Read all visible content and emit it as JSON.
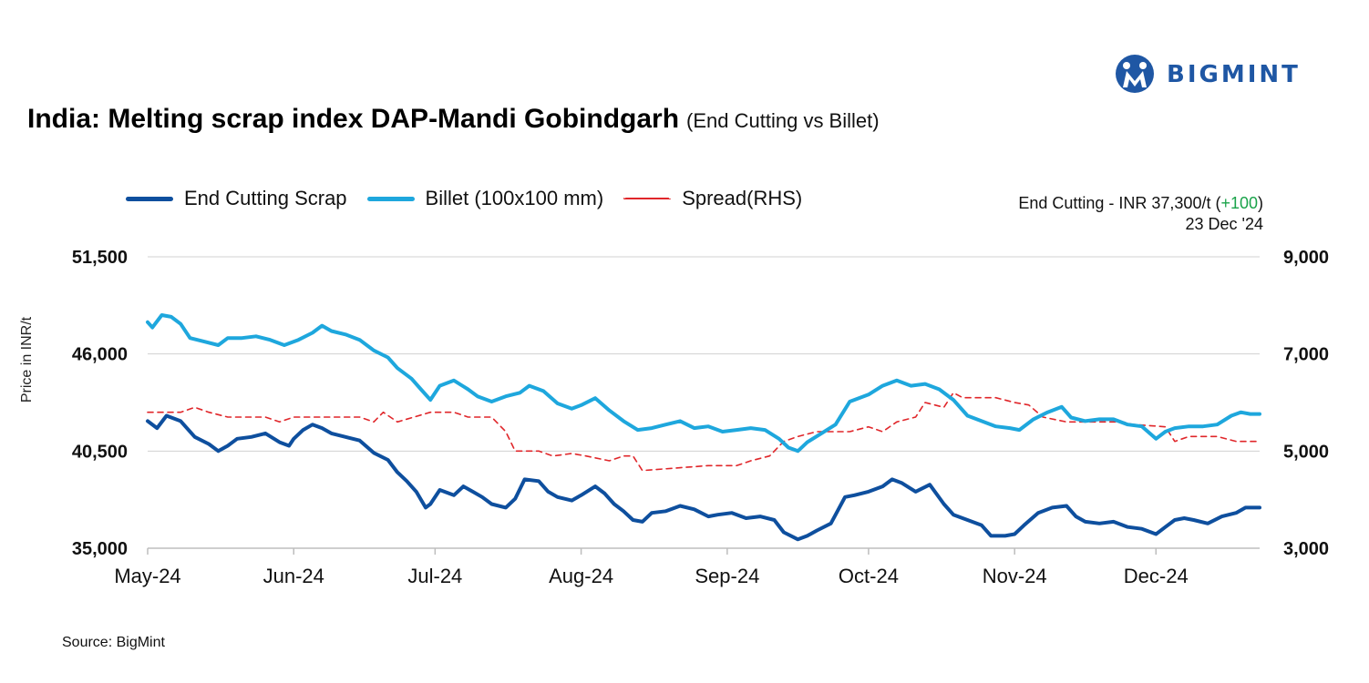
{
  "brand": {
    "name": "BIGMINT"
  },
  "header": {
    "title": "India: Melting scrap index DAP-Mandi Gobindgarh",
    "subtitle": "(End Cutting vs Billet)"
  },
  "annotation": {
    "line1_prefix": "End Cutting - INR 37,300/t (",
    "line1_change": "+100",
    "line1_suffix": ")",
    "line2": "23 Dec '24"
  },
  "source": "Source: BigMint",
  "colors": {
    "end_cutting": "#0e4f9e",
    "billet": "#1ea7dd",
    "spread": "#e0262a",
    "positive": "#1aa34a"
  },
  "chart_data": {
    "type": "line",
    "ylabel": "Price in INR/t",
    "y_ticks": [
      "35,000",
      "40,500",
      "46,000",
      "51,500"
    ],
    "y2_ticks": [
      "3,000",
      "5,000",
      "7,000",
      "9,000"
    ],
    "ylim": [
      35000,
      51500
    ],
    "y2lim": [
      3000,
      9000
    ],
    "x_ticks": [
      "May-24",
      "Jun-24",
      "Jul-24",
      "Aug-24",
      "Sep-24",
      "Oct-24",
      "Nov-24",
      "Dec-24"
    ],
    "x_range": [
      "2024-05-01",
      "2024-12-23"
    ],
    "grid": "horizontal",
    "legend_position": "top-left",
    "series": [
      {
        "name": "End Cutting Scrap",
        "axis": "left",
        "points": [
          [
            "2024-05-01",
            42200
          ],
          [
            "2024-05-03",
            41800
          ],
          [
            "2024-05-05",
            42500
          ],
          [
            "2024-05-08",
            42200
          ],
          [
            "2024-05-11",
            41300
          ],
          [
            "2024-05-14",
            40900
          ],
          [
            "2024-05-16",
            40500
          ],
          [
            "2024-05-18",
            40800
          ],
          [
            "2024-05-20",
            41200
          ],
          [
            "2024-05-23",
            41300
          ],
          [
            "2024-05-26",
            41500
          ],
          [
            "2024-05-29",
            41000
          ],
          [
            "2024-05-31",
            40800
          ],
          [
            "2024-06-01",
            41200
          ],
          [
            "2024-06-03",
            41700
          ],
          [
            "2024-06-05",
            42000
          ],
          [
            "2024-06-07",
            41800
          ],
          [
            "2024-06-09",
            41500
          ],
          [
            "2024-06-12",
            41300
          ],
          [
            "2024-06-15",
            41100
          ],
          [
            "2024-06-18",
            40400
          ],
          [
            "2024-06-21",
            40000
          ],
          [
            "2024-06-23",
            39300
          ],
          [
            "2024-06-25",
            38800
          ],
          [
            "2024-06-27",
            38200
          ],
          [
            "2024-06-29",
            37300
          ],
          [
            "2024-06-30",
            37500
          ],
          [
            "2024-07-02",
            38300
          ],
          [
            "2024-07-05",
            38000
          ],
          [
            "2024-07-07",
            38500
          ],
          [
            "2024-07-09",
            38200
          ],
          [
            "2024-07-11",
            37900
          ],
          [
            "2024-07-13",
            37500
          ],
          [
            "2024-07-16",
            37300
          ],
          [
            "2024-07-18",
            37800
          ],
          [
            "2024-07-20",
            38900
          ],
          [
            "2024-07-23",
            38800
          ],
          [
            "2024-07-25",
            38200
          ],
          [
            "2024-07-27",
            37900
          ],
          [
            "2024-07-30",
            37700
          ],
          [
            "2024-08-01",
            38000
          ],
          [
            "2024-08-04",
            38500
          ],
          [
            "2024-08-06",
            38100
          ],
          [
            "2024-08-08",
            37500
          ],
          [
            "2024-08-10",
            37100
          ],
          [
            "2024-08-12",
            36600
          ],
          [
            "2024-08-14",
            36500
          ],
          [
            "2024-08-16",
            37000
          ],
          [
            "2024-08-19",
            37100
          ],
          [
            "2024-08-22",
            37400
          ],
          [
            "2024-08-25",
            37200
          ],
          [
            "2024-08-28",
            36800
          ],
          [
            "2024-08-30",
            36900
          ],
          [
            "2024-09-02",
            37000
          ],
          [
            "2024-09-05",
            36700
          ],
          [
            "2024-09-08",
            36800
          ],
          [
            "2024-09-11",
            36600
          ],
          [
            "2024-09-13",
            35900
          ],
          [
            "2024-09-16",
            35500
          ],
          [
            "2024-09-18",
            35700
          ],
          [
            "2024-09-20",
            36000
          ],
          [
            "2024-09-23",
            36400
          ],
          [
            "2024-09-26",
            37900
          ],
          [
            "2024-09-28",
            38000
          ],
          [
            "2024-10-01",
            38200
          ],
          [
            "2024-10-04",
            38500
          ],
          [
            "2024-10-06",
            38900
          ],
          [
            "2024-10-08",
            38700
          ],
          [
            "2024-10-11",
            38200
          ],
          [
            "2024-10-14",
            38600
          ],
          [
            "2024-10-17",
            37500
          ],
          [
            "2024-10-19",
            36900
          ],
          [
            "2024-10-22",
            36600
          ],
          [
            "2024-10-25",
            36300
          ],
          [
            "2024-10-27",
            35700
          ],
          [
            "2024-10-30",
            35700
          ],
          [
            "2024-11-01",
            35800
          ],
          [
            "2024-11-03",
            36300
          ],
          [
            "2024-11-06",
            37000
          ],
          [
            "2024-11-09",
            37300
          ],
          [
            "2024-11-12",
            37400
          ],
          [
            "2024-11-14",
            36800
          ],
          [
            "2024-11-16",
            36500
          ],
          [
            "2024-11-19",
            36400
          ],
          [
            "2024-11-22",
            36500
          ],
          [
            "2024-11-25",
            36200
          ],
          [
            "2024-11-28",
            36100
          ],
          [
            "2024-12-01",
            35800
          ],
          [
            "2024-12-03",
            36200
          ],
          [
            "2024-12-05",
            36600
          ],
          [
            "2024-12-07",
            36700
          ],
          [
            "2024-12-09",
            36600
          ],
          [
            "2024-12-12",
            36400
          ],
          [
            "2024-12-15",
            36800
          ],
          [
            "2024-12-18",
            37000
          ],
          [
            "2024-12-20",
            37300
          ],
          [
            "2024-12-23",
            37300
          ]
        ]
      },
      {
        "name": "Billet (100x100 mm)",
        "axis": "left",
        "points": [
          [
            "2024-05-01",
            47800
          ],
          [
            "2024-05-02",
            47500
          ],
          [
            "2024-05-04",
            48200
          ],
          [
            "2024-05-06",
            48100
          ],
          [
            "2024-05-08",
            47700
          ],
          [
            "2024-05-10",
            46900
          ],
          [
            "2024-05-13",
            46700
          ],
          [
            "2024-05-16",
            46500
          ],
          [
            "2024-05-18",
            46900
          ],
          [
            "2024-05-21",
            46900
          ],
          [
            "2024-05-24",
            47000
          ],
          [
            "2024-05-27",
            46800
          ],
          [
            "2024-05-30",
            46500
          ],
          [
            "2024-06-02",
            46800
          ],
          [
            "2024-06-05",
            47200
          ],
          [
            "2024-06-07",
            47600
          ],
          [
            "2024-06-09",
            47300
          ],
          [
            "2024-06-12",
            47100
          ],
          [
            "2024-06-15",
            46800
          ],
          [
            "2024-06-18",
            46200
          ],
          [
            "2024-06-21",
            45800
          ],
          [
            "2024-06-23",
            45200
          ],
          [
            "2024-06-26",
            44600
          ],
          [
            "2024-06-28",
            44000
          ],
          [
            "2024-06-30",
            43400
          ],
          [
            "2024-07-02",
            44200
          ],
          [
            "2024-07-05",
            44500
          ],
          [
            "2024-07-08",
            44000
          ],
          [
            "2024-07-10",
            43600
          ],
          [
            "2024-07-13",
            43300
          ],
          [
            "2024-07-16",
            43600
          ],
          [
            "2024-07-19",
            43800
          ],
          [
            "2024-07-21",
            44200
          ],
          [
            "2024-07-24",
            43900
          ],
          [
            "2024-07-27",
            43200
          ],
          [
            "2024-07-30",
            42900
          ],
          [
            "2024-08-01",
            43100
          ],
          [
            "2024-08-04",
            43500
          ],
          [
            "2024-08-07",
            42800
          ],
          [
            "2024-08-10",
            42200
          ],
          [
            "2024-08-13",
            41700
          ],
          [
            "2024-08-16",
            41800
          ],
          [
            "2024-08-19",
            42000
          ],
          [
            "2024-08-22",
            42200
          ],
          [
            "2024-08-25",
            41800
          ],
          [
            "2024-08-28",
            41900
          ],
          [
            "2024-08-31",
            41600
          ],
          [
            "2024-09-03",
            41700
          ],
          [
            "2024-09-06",
            41800
          ],
          [
            "2024-09-09",
            41700
          ],
          [
            "2024-09-12",
            41200
          ],
          [
            "2024-09-14",
            40700
          ],
          [
            "2024-09-16",
            40500
          ],
          [
            "2024-09-18",
            41000
          ],
          [
            "2024-09-21",
            41500
          ],
          [
            "2024-09-24",
            42000
          ],
          [
            "2024-09-27",
            43300
          ],
          [
            "2024-10-01",
            43700
          ],
          [
            "2024-10-04",
            44200
          ],
          [
            "2024-10-07",
            44500
          ],
          [
            "2024-10-10",
            44200
          ],
          [
            "2024-10-13",
            44300
          ],
          [
            "2024-10-16",
            44000
          ],
          [
            "2024-10-19",
            43400
          ],
          [
            "2024-10-22",
            42500
          ],
          [
            "2024-10-25",
            42200
          ],
          [
            "2024-10-28",
            41900
          ],
          [
            "2024-10-31",
            41800
          ],
          [
            "2024-11-02",
            41700
          ],
          [
            "2024-11-05",
            42300
          ],
          [
            "2024-11-08",
            42700
          ],
          [
            "2024-11-11",
            43000
          ],
          [
            "2024-11-13",
            42400
          ],
          [
            "2024-11-16",
            42200
          ],
          [
            "2024-11-19",
            42300
          ],
          [
            "2024-11-22",
            42300
          ],
          [
            "2024-11-25",
            42000
          ],
          [
            "2024-11-28",
            41900
          ],
          [
            "2024-12-01",
            41200
          ],
          [
            "2024-12-03",
            41600
          ],
          [
            "2024-12-05",
            41800
          ],
          [
            "2024-12-08",
            41900
          ],
          [
            "2024-12-11",
            41900
          ],
          [
            "2024-12-14",
            42000
          ],
          [
            "2024-12-17",
            42500
          ],
          [
            "2024-12-19",
            42700
          ],
          [
            "2024-12-21",
            42600
          ],
          [
            "2024-12-23",
            42600
          ]
        ]
      },
      {
        "name": "Spread(RHS)",
        "axis": "right",
        "style": "dashed",
        "points": [
          [
            "2024-05-01",
            5800
          ],
          [
            "2024-05-08",
            5800
          ],
          [
            "2024-05-11",
            5900
          ],
          [
            "2024-05-14",
            5800
          ],
          [
            "2024-05-18",
            5700
          ],
          [
            "2024-05-26",
            5700
          ],
          [
            "2024-05-29",
            5600
          ],
          [
            "2024-06-01",
            5700
          ],
          [
            "2024-06-15",
            5700
          ],
          [
            "2024-06-18",
            5600
          ],
          [
            "2024-06-20",
            5800
          ],
          [
            "2024-06-23",
            5600
          ],
          [
            "2024-06-30",
            5800
          ],
          [
            "2024-07-05",
            5800
          ],
          [
            "2024-07-08",
            5700
          ],
          [
            "2024-07-13",
            5700
          ],
          [
            "2024-07-16",
            5400
          ],
          [
            "2024-07-18",
            5000
          ],
          [
            "2024-07-23",
            5000
          ],
          [
            "2024-07-26",
            4900
          ],
          [
            "2024-07-30",
            4950
          ],
          [
            "2024-08-02",
            4900
          ],
          [
            "2024-08-07",
            4800
          ],
          [
            "2024-08-10",
            4900
          ],
          [
            "2024-08-12",
            4900
          ],
          [
            "2024-08-14",
            4600
          ],
          [
            "2024-08-28",
            4700
          ],
          [
            "2024-09-03",
            4700
          ],
          [
            "2024-09-06",
            4800
          ],
          [
            "2024-09-10",
            4900
          ],
          [
            "2024-09-13",
            5200
          ],
          [
            "2024-09-16",
            5300
          ],
          [
            "2024-09-20",
            5400
          ],
          [
            "2024-09-27",
            5400
          ],
          [
            "2024-10-01",
            5500
          ],
          [
            "2024-10-04",
            5400
          ],
          [
            "2024-10-07",
            5600
          ],
          [
            "2024-10-11",
            5700
          ],
          [
            "2024-10-13",
            6000
          ],
          [
            "2024-10-17",
            5900
          ],
          [
            "2024-10-19",
            6200
          ],
          [
            "2024-10-21",
            6100
          ],
          [
            "2024-10-28",
            6100
          ],
          [
            "2024-11-01",
            6000
          ],
          [
            "2024-11-04",
            5950
          ],
          [
            "2024-11-07",
            5700
          ],
          [
            "2024-11-12",
            5600
          ],
          [
            "2024-11-24",
            5600
          ],
          [
            "2024-11-26",
            5550
          ],
          [
            "2024-12-03",
            5500
          ],
          [
            "2024-12-05",
            5200
          ],
          [
            "2024-12-08",
            5300
          ],
          [
            "2024-12-14",
            5300
          ],
          [
            "2024-12-18",
            5200
          ],
          [
            "2024-12-23",
            5200
          ]
        ]
      }
    ]
  }
}
